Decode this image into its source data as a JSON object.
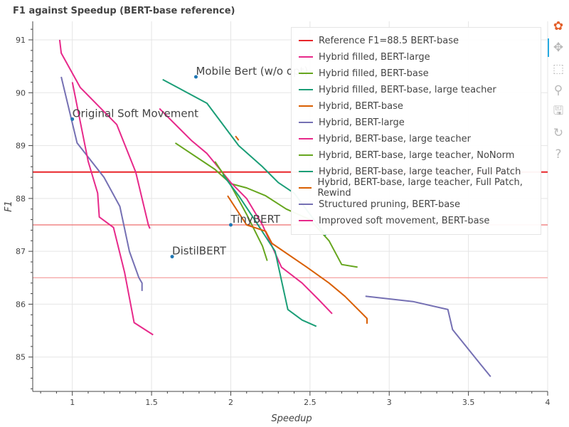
{
  "title": "F1 against Speedup (BERT-base reference)",
  "toolbar": {
    "tools": [
      {
        "name": "bokeh-logo-icon",
        "glyph": "✿"
      },
      {
        "name": "pan-icon",
        "glyph": "✥"
      },
      {
        "name": "box-zoom-icon",
        "glyph": "⬚"
      },
      {
        "name": "wheel-zoom-icon",
        "glyph": "⚲"
      },
      {
        "name": "save-icon",
        "glyph": "🖫"
      },
      {
        "name": "reset-icon",
        "glyph": "↻"
      },
      {
        "name": "help-icon",
        "glyph": "?"
      }
    ]
  },
  "chart_data": {
    "type": "line",
    "title": "F1 against Speedup (BERT-base reference)",
    "xlabel": "Speedup",
    "ylabel": "F1",
    "xlim": [
      0.75,
      4.0
    ],
    "ylim": [
      84.35,
      91.35
    ],
    "xticks": [
      1,
      1.5,
      2,
      2.5,
      3,
      3.5,
      4
    ],
    "xtick_labels": [
      "1",
      "1.5",
      "2",
      "2.5",
      "3",
      "3.5",
      "4"
    ],
    "yticks": [
      85,
      86,
      87,
      88,
      89,
      90,
      91
    ],
    "ytick_labels": [
      "85",
      "86",
      "87",
      "88",
      "89",
      "90",
      "91"
    ],
    "grid": true,
    "legend_position": "top-right",
    "hlines": [
      {
        "y": 88.5,
        "color": "#e8262a",
        "width": 2
      },
      {
        "y": 87.5,
        "color": "#ee6e6e",
        "width": 1.2
      },
      {
        "y": 86.5,
        "color": "#f4a0a0",
        "width": 1.2
      }
    ],
    "points": [
      {
        "label": "Mobile Bert (w/o opt)",
        "x": 1.78,
        "y": 90.3
      },
      {
        "label": "Original Soft Movement",
        "x": 1.0,
        "y": 89.5
      },
      {
        "label": "TinyBERT",
        "x": 2.0,
        "y": 87.5
      },
      {
        "label": "DistilBERT",
        "x": 1.63,
        "y": 86.9
      }
    ],
    "point_color": "#1f77b4",
    "series": [
      {
        "name": "Reference F1=88.5 BERT-base",
        "color": "#e8262a",
        "kind": "hline",
        "x": [],
        "y": []
      },
      {
        "name": "Hybrid filled, BERT-large",
        "color": "#e7298a",
        "x": [
          0.92,
          0.93,
          1.05,
          1.28,
          1.4,
          1.48,
          1.49
        ],
        "y": [
          91.0,
          90.75,
          90.1,
          89.4,
          88.5,
          87.5,
          87.43
        ]
      },
      {
        "name": "Hybrid filled, BERT-base",
        "color": "#66a61e",
        "x": [
          1.65,
          1.9,
          2.0,
          2.1,
          2.22,
          2.35,
          2.5,
          2.62,
          2.7,
          2.8
        ],
        "y": [
          89.05,
          88.55,
          88.28,
          88.2,
          88.05,
          87.8,
          87.6,
          87.2,
          86.75,
          86.7
        ]
      },
      {
        "name": "Hybrid filled, BERT-base, large teacher",
        "color": "#1b9e77",
        "x": [
          1.57,
          1.85,
          2.05,
          2.2,
          2.3,
          2.4,
          2.5,
          2.6
        ],
        "y": [
          90.25,
          89.8,
          89.0,
          88.6,
          88.3,
          88.1,
          87.7,
          87.3
        ]
      },
      {
        "name": "Hybrid, BERT-base",
        "color": "#d95f02",
        "x": [
          2.03,
          2.05
        ],
        "y": [
          89.18,
          89.1
        ]
      },
      {
        "name": "Hybrid, BERT-large",
        "color": "#7570b3",
        "x": [
          0.93,
          1.03,
          1.2,
          1.3,
          1.36,
          1.42,
          1.44,
          1.44
        ],
        "y": [
          90.3,
          89.05,
          88.4,
          87.85,
          87.0,
          86.5,
          86.4,
          86.25
        ]
      },
      {
        "name": "Hybrid, BERT-base, large teacher",
        "color": "#e7298a",
        "x": [
          1.55,
          1.75,
          1.85,
          2.0,
          2.1,
          2.2,
          2.32,
          2.45,
          2.55,
          2.64
        ],
        "y": [
          89.7,
          89.1,
          88.85,
          88.3,
          88.0,
          87.5,
          86.7,
          86.4,
          86.1,
          85.82
        ]
      },
      {
        "name": "Hybrid, BERT-base, large teacher, NoNorm",
        "color": "#66a61e",
        "x": [
          1.9,
          2.0,
          2.1,
          2.2,
          2.23
        ],
        "y": [
          88.7,
          88.25,
          87.7,
          87.1,
          86.82
        ]
      },
      {
        "name": "Hybrid, BERT-base, large teacher, Full Patch",
        "color": "#1b9e77",
        "x": [
          1.95,
          2.05,
          2.15,
          2.28,
          2.36,
          2.45,
          2.54
        ],
        "y": [
          88.45,
          88.05,
          87.6,
          87.0,
          85.9,
          85.7,
          85.58
        ]
      },
      {
        "name": "Hybrid, BERT-base, large teacher, Full Patch, Rewind",
        "color": "#d95f02",
        "x": [
          1.98,
          2.1,
          2.22,
          2.26,
          2.48,
          2.62,
          2.72,
          2.86,
          2.86
        ],
        "y": [
          88.05,
          87.5,
          87.38,
          87.15,
          86.7,
          86.4,
          86.15,
          85.73,
          85.63
        ]
      },
      {
        "name": "Structured pruning, BERT-base",
        "color": "#7570b3",
        "x": [
          2.85,
          3.15,
          3.37,
          3.4,
          3.58,
          3.64
        ],
        "y": [
          86.15,
          86.05,
          85.9,
          85.52,
          84.85,
          84.63
        ]
      },
      {
        "name": "Improved soft movement, BERT-base",
        "color": "#e7298a",
        "x": [
          1.0,
          1.1,
          1.16,
          1.17,
          1.26,
          1.33,
          1.39,
          1.51
        ],
        "y": [
          90.2,
          88.7,
          88.1,
          87.65,
          87.45,
          86.6,
          85.65,
          85.42
        ]
      }
    ]
  }
}
